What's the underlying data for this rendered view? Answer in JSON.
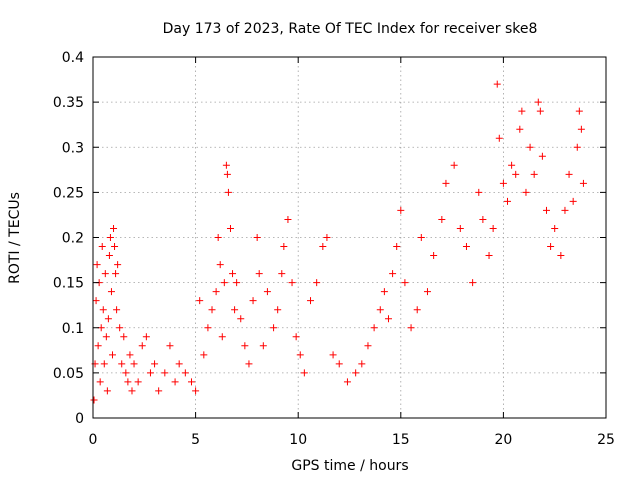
{
  "chart_data": {
    "type": "scatter",
    "title": "Day 173 of 2023, Rate Of TEC Index for receiver ske8",
    "xlabel": "GPS time / hours",
    "ylabel": "ROTI / TECUs",
    "xlim": [
      0,
      25
    ],
    "ylim": [
      0,
      0.4
    ],
    "xticks": [
      "0",
      "5",
      "10",
      "15",
      "20",
      "25"
    ],
    "yticks": [
      "0",
      "0.05",
      "0.1",
      "0.15",
      "0.2",
      "0.25",
      "0.3",
      "0.35",
      "0.4"
    ],
    "grid": true,
    "legend": "none",
    "marker": "plus",
    "color": "#ff0000",
    "series": [
      {
        "points": [
          [
            0.05,
            0.02
          ],
          [
            0.1,
            0.06
          ],
          [
            0.15,
            0.13
          ],
          [
            0.2,
            0.17
          ],
          [
            0.25,
            0.08
          ],
          [
            0.3,
            0.15
          ],
          [
            0.35,
            0.04
          ],
          [
            0.4,
            0.1
          ],
          [
            0.45,
            0.19
          ],
          [
            0.5,
            0.12
          ],
          [
            0.55,
            0.06
          ],
          [
            0.6,
            0.16
          ],
          [
            0.65,
            0.09
          ],
          [
            0.7,
            0.03
          ],
          [
            0.75,
            0.11
          ],
          [
            0.8,
            0.18
          ],
          [
            0.85,
            0.2
          ],
          [
            0.9,
            0.14
          ],
          [
            0.95,
            0.07
          ],
          [
            1.0,
            0.21
          ],
          [
            1.05,
            0.19
          ],
          [
            1.1,
            0.16
          ],
          [
            1.15,
            0.12
          ],
          [
            1.2,
            0.17
          ],
          [
            1.3,
            0.1
          ],
          [
            1.4,
            0.06
          ],
          [
            1.5,
            0.09
          ],
          [
            1.6,
            0.05
          ],
          [
            1.7,
            0.04
          ],
          [
            1.8,
            0.07
          ],
          [
            1.9,
            0.03
          ],
          [
            2.0,
            0.06
          ],
          [
            2.2,
            0.04
          ],
          [
            2.4,
            0.08
          ],
          [
            2.6,
            0.09
          ],
          [
            2.8,
            0.05
          ],
          [
            3.0,
            0.06
          ],
          [
            3.2,
            0.03
          ],
          [
            3.5,
            0.05
          ],
          [
            3.75,
            0.08
          ],
          [
            4.0,
            0.04
          ],
          [
            4.2,
            0.06
          ],
          [
            4.5,
            0.05
          ],
          [
            4.8,
            0.04
          ],
          [
            5.0,
            0.03
          ],
          [
            5.2,
            0.13
          ],
          [
            5.4,
            0.07
          ],
          [
            5.6,
            0.1
          ],
          [
            5.8,
            0.12
          ],
          [
            6.0,
            0.14
          ],
          [
            6.1,
            0.2
          ],
          [
            6.2,
            0.17
          ],
          [
            6.3,
            0.09
          ],
          [
            6.4,
            0.15
          ],
          [
            6.5,
            0.28
          ],
          [
            6.55,
            0.27
          ],
          [
            6.6,
            0.25
          ],
          [
            6.7,
            0.21
          ],
          [
            6.8,
            0.16
          ],
          [
            6.9,
            0.12
          ],
          [
            7.0,
            0.15
          ],
          [
            7.2,
            0.11
          ],
          [
            7.4,
            0.08
          ],
          [
            7.6,
            0.06
          ],
          [
            7.8,
            0.13
          ],
          [
            8.0,
            0.2
          ],
          [
            8.1,
            0.16
          ],
          [
            8.3,
            0.08
          ],
          [
            8.5,
            0.14
          ],
          [
            8.8,
            0.1
          ],
          [
            9.0,
            0.12
          ],
          [
            9.2,
            0.16
          ],
          [
            9.3,
            0.19
          ],
          [
            9.5,
            0.22
          ],
          [
            9.7,
            0.15
          ],
          [
            9.9,
            0.09
          ],
          [
            10.1,
            0.07
          ],
          [
            10.3,
            0.05
          ],
          [
            10.6,
            0.13
          ],
          [
            10.9,
            0.15
          ],
          [
            11.2,
            0.19
          ],
          [
            11.4,
            0.2
          ],
          [
            11.7,
            0.07
          ],
          [
            12.0,
            0.06
          ],
          [
            12.4,
            0.04
          ],
          [
            12.8,
            0.05
          ],
          [
            13.1,
            0.06
          ],
          [
            13.4,
            0.08
          ],
          [
            13.7,
            0.1
          ],
          [
            14.0,
            0.12
          ],
          [
            14.2,
            0.14
          ],
          [
            14.4,
            0.11
          ],
          [
            14.6,
            0.16
          ],
          [
            14.8,
            0.19
          ],
          [
            15.0,
            0.23
          ],
          [
            15.2,
            0.15
          ],
          [
            15.5,
            0.1
          ],
          [
            15.8,
            0.12
          ],
          [
            16.0,
            0.2
          ],
          [
            16.3,
            0.14
          ],
          [
            16.6,
            0.18
          ],
          [
            17.0,
            0.22
          ],
          [
            17.2,
            0.26
          ],
          [
            17.6,
            0.28
          ],
          [
            17.9,
            0.21
          ],
          [
            18.2,
            0.19
          ],
          [
            18.5,
            0.15
          ],
          [
            18.8,
            0.25
          ],
          [
            19.0,
            0.22
          ],
          [
            19.3,
            0.18
          ],
          [
            19.5,
            0.21
          ],
          [
            19.7,
            0.37
          ],
          [
            19.8,
            0.31
          ],
          [
            20.0,
            0.26
          ],
          [
            20.2,
            0.24
          ],
          [
            20.4,
            0.28
          ],
          [
            20.6,
            0.27
          ],
          [
            20.8,
            0.32
          ],
          [
            20.9,
            0.34
          ],
          [
            21.1,
            0.25
          ],
          [
            21.3,
            0.3
          ],
          [
            21.5,
            0.27
          ],
          [
            21.7,
            0.35
          ],
          [
            21.8,
            0.34
          ],
          [
            21.9,
            0.29
          ],
          [
            22.1,
            0.23
          ],
          [
            22.3,
            0.19
          ],
          [
            22.5,
            0.21
          ],
          [
            22.8,
            0.18
          ],
          [
            23.0,
            0.23
          ],
          [
            23.2,
            0.27
          ],
          [
            23.4,
            0.24
          ],
          [
            23.6,
            0.3
          ],
          [
            23.7,
            0.34
          ],
          [
            23.8,
            0.32
          ],
          [
            23.9,
            0.26
          ]
        ]
      }
    ]
  }
}
